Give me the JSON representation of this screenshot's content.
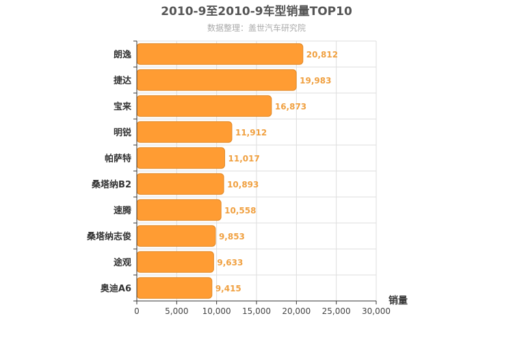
{
  "chart_data": {
    "type": "bar",
    "orientation": "horizontal",
    "title": "2010-9至2010-9车型销量TOP10",
    "subtitle": "数据整理：盖世汽车研究院",
    "categories": [
      "朗逸",
      "捷达",
      "宝来",
      "明锐",
      "帕萨特",
      "桑塔纳B2",
      "速腾",
      "桑塔纳志俊",
      "途观",
      "奥迪A6"
    ],
    "values": [
      20812,
      19983,
      16873,
      11912,
      11017,
      10893,
      10558,
      9853,
      9633,
      9415
    ],
    "value_labels": [
      "20,812",
      "19,983",
      "16,873",
      "11,912",
      "11,017",
      "10,893",
      "10,558",
      "9,853",
      "9,633",
      "9,415"
    ],
    "xlabel": "销量",
    "ylabel": "",
    "xlim": [
      0,
      30000
    ],
    "x_ticks": [
      0,
      5000,
      10000,
      15000,
      20000,
      25000,
      30000
    ],
    "x_tick_labels": [
      "0",
      "5,000",
      "10,000",
      "15,000",
      "20,000",
      "25,000",
      "30,000"
    ],
    "grid": true,
    "bar_color": "#ff9c33",
    "bar_border_color": "#e08a2a",
    "label_color": "#f0a040"
  }
}
